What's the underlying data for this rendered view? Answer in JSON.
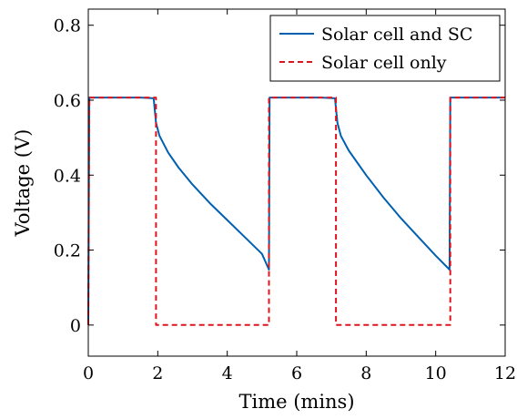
{
  "chart_data": {
    "type": "line",
    "title": "",
    "xlabel": "Time (mins)",
    "ylabel": "Voltage (V)",
    "xlim": [
      0,
      12
    ],
    "ylim": [
      -0.083,
      0.843
    ],
    "xticks": [
      0,
      2,
      4,
      6,
      8,
      10,
      12
    ],
    "yticks": [
      0,
      0.2,
      0.4,
      0.6,
      0.8
    ],
    "xtick_labels": [
      "0",
      "2",
      "4",
      "6",
      "8",
      "10",
      "12"
    ],
    "ytick_labels": [
      "0",
      "0.2",
      "0.4",
      "0.6",
      "0.8"
    ],
    "grid": false,
    "legend_position": "top-right",
    "series": [
      {
        "name": "Solar cell and SC",
        "color": "#0060b0",
        "style": "solid",
        "points": [
          [
            0,
            0
          ],
          [
            0.03,
            0.607
          ],
          [
            0.5,
            0.607
          ],
          [
            1.0,
            0.607
          ],
          [
            1.5,
            0.607
          ],
          [
            1.88,
            0.605
          ],
          [
            1.95,
            0.54
          ],
          [
            2.05,
            0.505
          ],
          [
            2.3,
            0.46
          ],
          [
            2.6,
            0.42
          ],
          [
            3.0,
            0.375
          ],
          [
            3.5,
            0.325
          ],
          [
            4.0,
            0.28
          ],
          [
            4.5,
            0.235
          ],
          [
            5.0,
            0.19
          ],
          [
            5.2,
            0.148
          ],
          [
            5.22,
            0.607
          ],
          [
            5.7,
            0.607
          ],
          [
            6.2,
            0.607
          ],
          [
            6.7,
            0.607
          ],
          [
            7.1,
            0.605
          ],
          [
            7.17,
            0.54
          ],
          [
            7.27,
            0.505
          ],
          [
            7.5,
            0.465
          ],
          [
            8.0,
            0.4
          ],
          [
            8.5,
            0.34
          ],
          [
            9.0,
            0.285
          ],
          [
            9.5,
            0.235
          ],
          [
            10.0,
            0.185
          ],
          [
            10.4,
            0.148
          ],
          [
            10.42,
            0.607
          ],
          [
            11.0,
            0.607
          ],
          [
            11.5,
            0.607
          ],
          [
            12.0,
            0.607
          ]
        ]
      },
      {
        "name": "Solar cell only",
        "color": "#e0141e",
        "style": "dashed",
        "points": [
          [
            0,
            0
          ],
          [
            0.03,
            0.607
          ],
          [
            1.9,
            0.607
          ],
          [
            1.95,
            0.607
          ],
          [
            1.95,
            0.0
          ],
          [
            5.2,
            0.0
          ],
          [
            5.2,
            0.607
          ],
          [
            7.13,
            0.607
          ],
          [
            7.13,
            0.0
          ],
          [
            10.42,
            0.0
          ],
          [
            10.42,
            0.607
          ],
          [
            12.0,
            0.607
          ]
        ]
      }
    ]
  }
}
